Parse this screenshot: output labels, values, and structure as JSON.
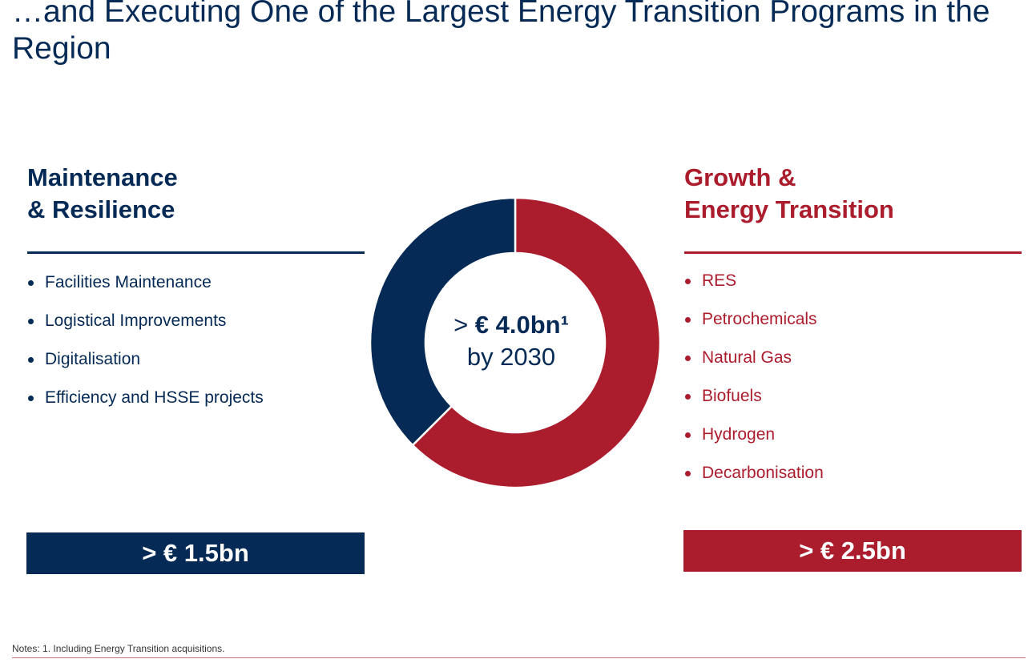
{
  "title": "…and Executing One of the Largest Energy Transition Programs in the Region",
  "left_panel": {
    "heading_line1": "Maintenance",
    "heading_line2": "& Resilience",
    "items": [
      "Facilities Maintenance",
      "Logistical Improvements",
      "Digitalisation",
      "Efficiency and HSSE projects"
    ],
    "total": "> € 1.5bn"
  },
  "right_panel": {
    "heading_line1": "Growth &",
    "heading_line2": "Energy Transition",
    "items": [
      "RES",
      "Petrochemicals",
      "Natural Gas",
      "Biofuels",
      "Hydrogen",
      "Decarbonisation"
    ],
    "total": "> € 2.5bn"
  },
  "center": {
    "line1_prefix": "> ",
    "line1_amount": "€ 4.0bn¹",
    "line2": "by 2030"
  },
  "notes": "Notes: 1. Including Energy Transition acquisitions.",
  "colors": {
    "navy": "#052a56",
    "red": "#ab1c2c"
  },
  "chart_data": {
    "type": "pie",
    "variant": "donut",
    "slices": [
      {
        "label": "Growth & Energy Transition",
        "value": 2.5,
        "color": "#ab1c2c"
      },
      {
        "label": "Maintenance & Resilience",
        "value": 1.5,
        "color": "#052a56"
      }
    ],
    "start": "12 o'clock",
    "direction": "clockwise",
    "legend": "none"
  }
}
